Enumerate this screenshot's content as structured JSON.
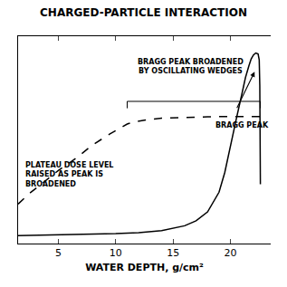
{
  "chart_data": {
    "type": "line",
    "title": "CHARGED-PARTICLE INTERACTION",
    "x_label": "WATER DEPTH, g/cm²",
    "xlim": [
      1.5,
      23.5
    ],
    "ylim": [
      0,
      1.05
    ],
    "xticks": [
      5,
      10,
      15,
      20
    ],
    "tick_labels": "x",
    "grid": false,
    "series": [
      {
        "color": "black",
        "line_style": "solid",
        "x": [
          1.5,
          4,
          6,
          8,
          10,
          12,
          14,
          16,
          17,
          18,
          19,
          19.5,
          20,
          20.5,
          21,
          21.3,
          21.6,
          21.8,
          22.0,
          22.2,
          22.4,
          22.5,
          22.55,
          22.6
        ],
        "values": [
          0.04,
          0.042,
          0.045,
          0.047,
          0.05,
          0.055,
          0.065,
          0.09,
          0.115,
          0.16,
          0.26,
          0.36,
          0.5,
          0.63,
          0.76,
          0.84,
          0.9,
          0.935,
          0.955,
          0.965,
          0.96,
          0.93,
          0.8,
          0.3
        ]
      },
      {
        "color": "black",
        "line_style": "dashed",
        "x": [
          1.5,
          2.5,
          3.5,
          5,
          6.5,
          8,
          9.5,
          10.5,
          11.0,
          11.5,
          12.5,
          14,
          16,
          18,
          20,
          22,
          22.6
        ],
        "values": [
          0.2,
          0.255,
          0.3,
          0.37,
          0.43,
          0.5,
          0.555,
          0.59,
          0.605,
          0.615,
          0.625,
          0.635,
          0.64,
          0.642,
          0.643,
          0.643,
          0.643
        ]
      }
    ],
    "annotations": [
      {
        "text": "BRAGG PEAK BROADENED\nBY OSCILLATING WEDGES",
        "x": 16.5,
        "y": 0.845,
        "anchor": "bottom center"
      },
      {
        "text": "BRAGG PEAK",
        "x": 18.5,
        "y": 0.6,
        "anchor": "middle left"
      },
      {
        "text": "PLATEAU DOSE LEVEL\nRAISED AS PEAK IS\nBROADENED",
        "x": 2.0,
        "y": 0.35,
        "anchor": "middle left"
      }
    ],
    "arrows": [
      {
        "from": [
          20.5,
          0.68
        ],
        "to": [
          22.1,
          0.87
        ]
      }
    ],
    "brackets": [
      {
        "x": [
          11.0,
          22.6
        ],
        "y": 0.72,
        "tick_down": 0.035
      }
    ]
  }
}
